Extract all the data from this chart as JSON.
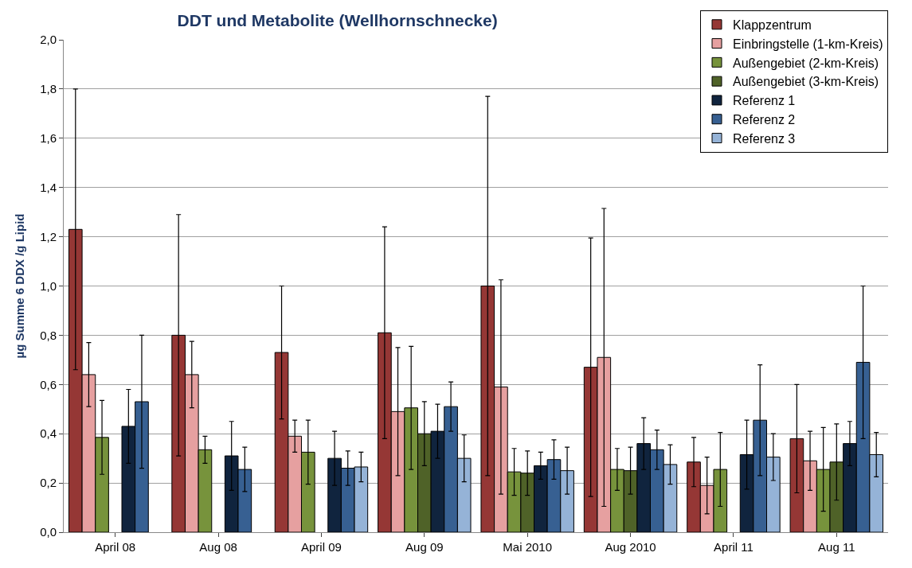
{
  "chart_data": {
    "type": "bar",
    "title": "DDT und Metabolite (Wellhornschnecke)",
    "ylabel": "µg Summe 6 DDX /g Lipid",
    "categories": [
      "April 08",
      "Aug 08",
      "April 09",
      "Aug 09",
      "Mai 2010",
      "Aug 2010",
      "April 11",
      "Aug 11"
    ],
    "series": [
      {
        "name": "Klappzentrum",
        "color": "#953735",
        "values": [
          1.23,
          0.8,
          0.73,
          0.81,
          1.0,
          0.67,
          0.285,
          0.38
        ],
        "errors": [
          0.57,
          0.49,
          0.27,
          0.43,
          0.77,
          0.525,
          0.1,
          0.22
        ]
      },
      {
        "name": "Einbringstelle (1-km-Kreis)",
        "color": "#e6a0a0",
        "values": [
          0.64,
          0.64,
          0.39,
          0.49,
          0.59,
          0.71,
          0.19,
          0.29
        ],
        "errors": [
          0.13,
          0.135,
          0.065,
          0.26,
          0.435,
          0.605,
          0.115,
          0.12
        ]
      },
      {
        "name": "Außengebiet (2-km-Kreis)",
        "color": "#77933c",
        "values": [
          0.385,
          0.335,
          0.325,
          0.505,
          0.245,
          0.255,
          0.255,
          0.255
        ],
        "errors": [
          0.15,
          0.055,
          0.13,
          0.25,
          0.095,
          0.085,
          0.15,
          0.17
        ]
      },
      {
        "name": "Außengebiet (3-km-Kreis)",
        "color": "#4f6228",
        "values": [
          null,
          null,
          null,
          0.4,
          0.24,
          0.25,
          null,
          0.285
        ],
        "errors": [
          null,
          null,
          null,
          0.13,
          0.09,
          0.095,
          null,
          0.155
        ]
      },
      {
        "name": "Referenz 1",
        "color": "#10243e",
        "values": [
          0.43,
          0.31,
          0.3,
          0.41,
          0.27,
          0.36,
          0.315,
          0.36
        ],
        "errors": [
          0.15,
          0.14,
          0.11,
          0.11,
          0.055,
          0.105,
          0.14,
          0.09
        ]
      },
      {
        "name": "Referenz 2",
        "color": "#376092",
        "values": [
          0.53,
          0.255,
          0.26,
          0.51,
          0.295,
          0.335,
          0.455,
          0.69
        ],
        "errors": [
          0.27,
          0.09,
          0.07,
          0.1,
          0.08,
          0.08,
          0.225,
          0.31
        ]
      },
      {
        "name": "Referenz 3",
        "color": "#95b3d7",
        "values": [
          null,
          null,
          0.265,
          0.3,
          0.25,
          0.275,
          0.305,
          0.315
        ],
        "errors": [
          null,
          null,
          0.06,
          0.095,
          0.095,
          0.08,
          0.095,
          0.09
        ]
      }
    ],
    "ylim": [
      0,
      2
    ],
    "yticks": [
      {
        "value": 0,
        "label": "0,0"
      },
      {
        "value": 0.2,
        "label": "0,2"
      },
      {
        "value": 0.4,
        "label": "0,4"
      },
      {
        "value": 0.6,
        "label": "0,6"
      },
      {
        "value": 0.8,
        "label": "0,8"
      },
      {
        "value": 1.0,
        "label": "1,0"
      },
      {
        "value": 1.2,
        "label": "1,2"
      },
      {
        "value": 1.4,
        "label": "1,4"
      },
      {
        "value": 1.6,
        "label": "1,6"
      },
      {
        "value": 1.8,
        "label": "1,8"
      },
      {
        "value": 2.0,
        "label": "2,0"
      }
    ],
    "grid": "y",
    "legend": "top right"
  }
}
